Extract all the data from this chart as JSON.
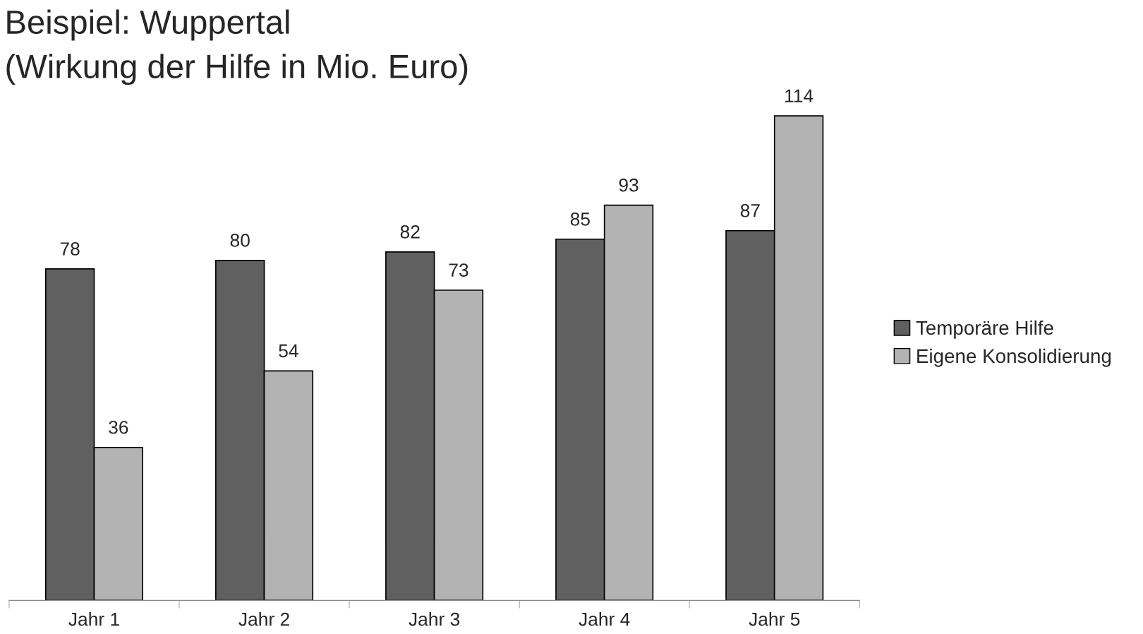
{
  "chart_data": {
    "type": "bar",
    "title": "Beispiel: Wuppertal",
    "subtitle": "(Wirkung der Hilfe in Mio. Euro)",
    "categories": [
      "Jahr 1",
      "Jahr 2",
      "Jahr 3",
      "Jahr 4",
      "Jahr 5"
    ],
    "series": [
      {
        "name": "Temporäre Hilfe",
        "color": "#606060",
        "values": [
          78,
          80,
          82,
          85,
          87
        ]
      },
      {
        "name": "Eigene Konsolidierung",
        "color": "#b3b3b3",
        "values": [
          36,
          54,
          73,
          93,
          114
        ]
      }
    ],
    "data_labels": true,
    "legend": "right",
    "grid": false
  }
}
